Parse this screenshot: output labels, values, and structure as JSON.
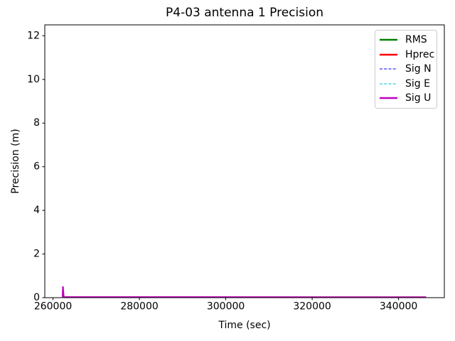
{
  "figure": {
    "title": "P4-03 antenna 1 Precision",
    "xlabel": "Time (sec)",
    "ylabel": "Precision (m)"
  },
  "chart_data": {
    "type": "line",
    "title": "P4-03 antenna 1 Precision",
    "xlabel": "Time (sec)",
    "ylabel": "Precision (m)",
    "xlim": [
      258100,
      350600
    ],
    "ylim": [
      0,
      12.5
    ],
    "xticks": [
      260000,
      280000,
      300000,
      320000,
      340000
    ],
    "yticks": [
      0,
      2,
      4,
      6,
      8,
      10,
      12
    ],
    "grid": false,
    "legend_position": "upper right",
    "background": "#ffffff",
    "spine_color": "#000000",
    "series": [
      {
        "name": "RMS",
        "color": "#008000",
        "linestyle": "solid",
        "linewidth": 2,
        "x": [
          262200,
          346400
        ],
        "y": [
          0.02,
          0.02
        ]
      },
      {
        "name": "Hprec",
        "color": "#ff0000",
        "linestyle": "solid",
        "linewidth": 2,
        "x": [
          262200,
          346400
        ],
        "y": [
          0.02,
          0.02
        ]
      },
      {
        "name": "Sig N",
        "color": "#0000ff",
        "linestyle": "dashed",
        "linewidth": 1,
        "x": [
          262200,
          346400
        ],
        "y": [
          0.02,
          0.02
        ]
      },
      {
        "name": "Sig E",
        "color": "#00bfbf",
        "linestyle": "dashed",
        "linewidth": 1,
        "x": [
          262200,
          346400
        ],
        "y": [
          0.02,
          0.02
        ]
      },
      {
        "name": "Sig U",
        "color": "#bf00bf",
        "linestyle": "solid",
        "linewidth": 2,
        "x": [
          262200,
          262300,
          262500,
          346400
        ],
        "y": [
          0.03,
          0.52,
          0.03,
          0.02
        ]
      }
    ]
  }
}
